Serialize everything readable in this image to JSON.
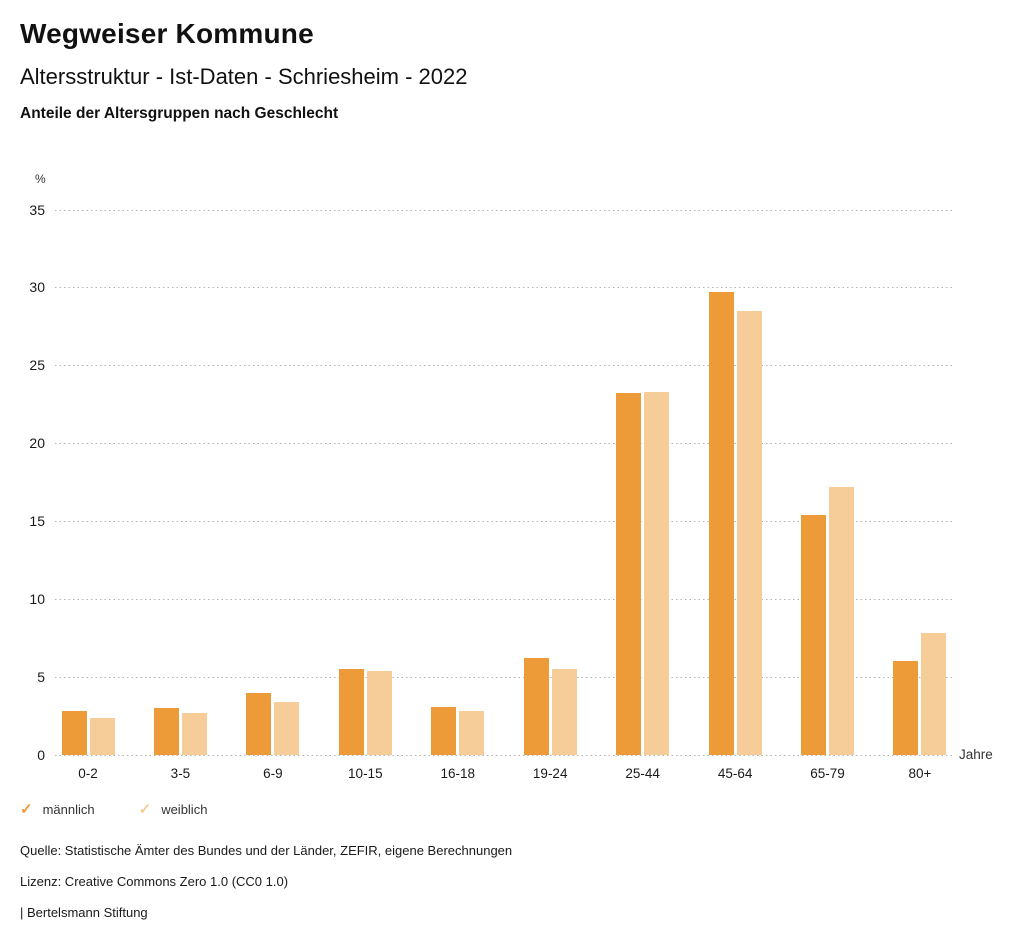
{
  "header": {
    "title": "Wegweiser Kommune",
    "subtitle": "Altersstruktur - Ist-Daten - Schriesheim - 2022",
    "description": "Anteile der Altersgruppen nach Geschlecht"
  },
  "legend_check_glyph": "✓",
  "chart_data": {
    "type": "bar",
    "title": "Anteile der Altersgruppen nach Geschlecht",
    "unit_label": "%",
    "xlabel": "Jahre",
    "ylabel": "%",
    "categories": [
      "0-2",
      "3-5",
      "6-9",
      "10-15",
      "16-18",
      "19-24",
      "25-44",
      "45-64",
      "65-79",
      "80+"
    ],
    "series": [
      {
        "name": "männlich",
        "color": "#ED9A38",
        "values": [
          2.8,
          3.0,
          4.0,
          5.5,
          3.1,
          6.2,
          23.2,
          29.7,
          15.4,
          6.0
        ]
      },
      {
        "name": "weiblich",
        "color": "#F6CC98",
        "values": [
          2.4,
          2.7,
          3.4,
          5.4,
          2.8,
          5.5,
          23.3,
          28.5,
          17.2,
          7.8
        ]
      }
    ],
    "ylim": [
      0,
      35
    ],
    "yticks": [
      0,
      5,
      10,
      15,
      20,
      25,
      30,
      35
    ],
    "grid": "dotted horizontal",
    "legend_position": "bottom-left"
  },
  "footer": {
    "source": "Quelle: Statistische Ämter des Bundes und der Länder, ZEFIR, eigene Berechnungen",
    "license": "Lizenz: Creative Commons Zero 1.0 (CC0 1.0)",
    "attribution": "| Bertelsmann Stiftung"
  }
}
